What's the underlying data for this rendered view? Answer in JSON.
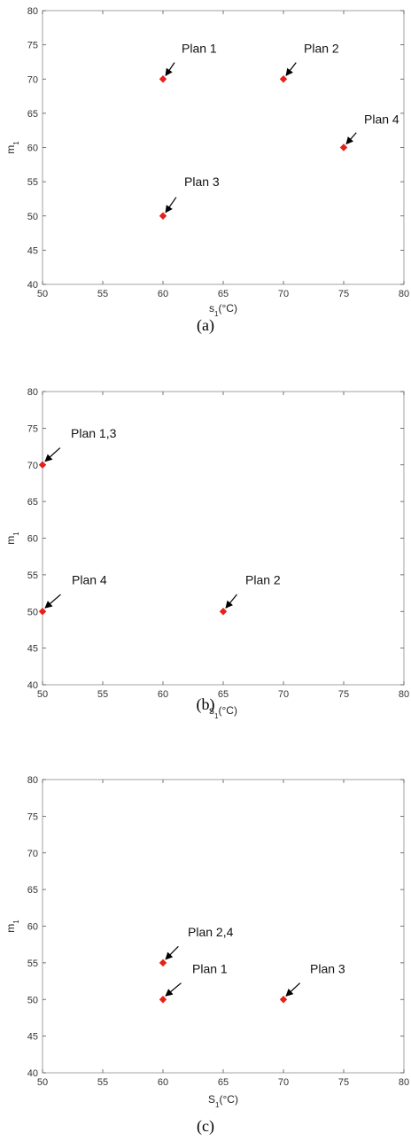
{
  "chart_data": [
    {
      "type": "scatter",
      "xlabel": "s₁(°C)",
      "ylabel": "m₁",
      "xlim": [
        50,
        80
      ],
      "ylim": [
        40,
        80
      ],
      "xticks": [
        50,
        55,
        60,
        65,
        70,
        75,
        80
      ],
      "yticks": [
        40,
        45,
        50,
        55,
        60,
        65,
        70,
        75,
        80
      ],
      "points": [
        {
          "x": 60,
          "y": 70,
          "label": "Plan 1"
        },
        {
          "x": 70,
          "y": 70,
          "label": "Plan 2"
        },
        {
          "x": 75,
          "y": 60,
          "label": "Plan 4"
        },
        {
          "x": 60,
          "y": 50,
          "label": "Plan 3"
        }
      ],
      "marker_color": "#e8201a",
      "caption": "(a)"
    },
    {
      "type": "scatter",
      "xlabel": "s₁(°C)",
      "ylabel": "m₁",
      "xlim": [
        50,
        80
      ],
      "ylim": [
        40,
        80
      ],
      "xticks": [
        50,
        55,
        60,
        65,
        70,
        75,
        80
      ],
      "yticks": [
        40,
        45,
        50,
        55,
        60,
        65,
        70,
        75,
        80
      ],
      "points": [
        {
          "x": 50,
          "y": 70,
          "label": "Plan 1,3"
        },
        {
          "x": 50,
          "y": 50,
          "label": "Plan 4"
        },
        {
          "x": 65,
          "y": 50,
          "label": "Plan 2"
        }
      ],
      "marker_color": "#e8201a",
      "caption": "(b)"
    },
    {
      "type": "scatter",
      "xlabel": "S₁(°C)",
      "ylabel": "m₁",
      "xlim": [
        50,
        80
      ],
      "ylim": [
        40,
        80
      ],
      "xticks": [
        50,
        55,
        60,
        65,
        70,
        75,
        80
      ],
      "yticks": [
        40,
        45,
        50,
        55,
        60,
        65,
        70,
        75,
        80
      ],
      "points": [
        {
          "x": 60,
          "y": 55,
          "label": "Plan 2,4"
        },
        {
          "x": 60,
          "y": 50,
          "label": "Plan 1"
        },
        {
          "x": 70,
          "y": 50,
          "label": "Plan 3"
        }
      ],
      "marker_color": "#e8201a",
      "caption": "(c)"
    }
  ]
}
